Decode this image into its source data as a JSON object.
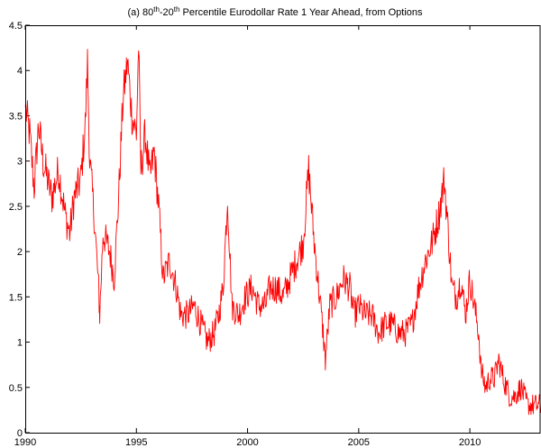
{
  "chart_data": {
    "type": "line",
    "title_parts": {
      "prefix": "(a) 80",
      "sup1": "th",
      "middle": "-20",
      "sup2": "th",
      "suffix": " Percentile Eurodollar Rate 1 Year Ahead, from Options"
    },
    "xlabel": "",
    "ylabel": "",
    "xlim": [
      1990,
      2013.2
    ],
    "ylim": [
      0,
      4.5
    ],
    "xticks": [
      1990,
      1995,
      2000,
      2005,
      2010
    ],
    "xtick_labels": [
      "1990",
      "1995",
      "2000",
      "2005",
      "2010"
    ],
    "yticks": [
      0,
      0.5,
      1,
      1.5,
      2,
      2.5,
      3,
      3.5,
      4,
      4.5
    ],
    "ytick_labels": [
      "0",
      "0.5",
      "1",
      "1.5",
      "2",
      "2.5",
      "3",
      "3.5",
      "4",
      "4.5"
    ],
    "grid": false,
    "series": [
      {
        "color": "#ff0000",
        "x": [
          1990.0,
          1990.2,
          1990.4,
          1990.6,
          1990.8,
          1991.0,
          1991.2,
          1991.5,
          1991.8,
          1992.0,
          1992.2,
          1992.5,
          1992.7,
          1992.8,
          1992.9,
          1993.1,
          1993.3,
          1993.35,
          1993.5,
          1993.8,
          1994.0,
          1994.2,
          1994.4,
          1994.6,
          1994.8,
          1995.0,
          1995.1,
          1995.2,
          1995.4,
          1995.6,
          1995.8,
          1996.0,
          1996.2,
          1996.5,
          1996.8,
          1997.0,
          1997.3,
          1997.6,
          1997.9,
          1998.2,
          1998.5,
          1998.7,
          1998.9,
          1999.1,
          1999.3,
          1999.6,
          1999.9,
          2000.2,
          2000.5,
          2000.8,
          2001.0,
          2001.3,
          2001.6,
          2001.9,
          2002.2,
          2002.5,
          2002.75,
          2003.0,
          2003.2,
          2003.4,
          2003.5,
          2003.7,
          2004.0,
          2004.3,
          2004.6,
          2004.8,
          2005.0,
          2005.3,
          2005.6,
          2005.9,
          2006.2,
          2006.5,
          2006.8,
          2007.1,
          2007.4,
          2007.7,
          2008.0,
          2008.3,
          2008.6,
          2008.85,
          2009.0,
          2009.2,
          2009.4,
          2009.6,
          2009.8,
          2010.0,
          2010.2,
          2010.4,
          2010.5,
          2010.7,
          2010.9,
          2011.1,
          2011.3,
          2011.5,
          2011.8,
          2012.0,
          2012.3,
          2012.6,
          2012.9,
          2013.2
        ],
        "y": [
          3.6,
          3.3,
          2.7,
          3.4,
          3.0,
          2.8,
          2.6,
          2.9,
          2.4,
          2.2,
          2.6,
          2.8,
          3.4,
          4.1,
          3.0,
          2.4,
          1.6,
          1.3,
          2.2,
          2.0,
          1.7,
          2.6,
          3.7,
          4.1,
          3.5,
          3.3,
          4.3,
          2.9,
          3.3,
          2.8,
          3.1,
          2.5,
          1.7,
          1.9,
          1.6,
          1.3,
          1.3,
          1.4,
          1.2,
          1.0,
          1.1,
          1.3,
          1.6,
          2.6,
          1.4,
          1.3,
          1.5,
          1.6,
          1.4,
          1.4,
          1.6,
          1.6,
          1.5,
          1.7,
          1.9,
          2.1,
          2.9,
          2.1,
          1.6,
          1.1,
          0.8,
          1.4,
          1.5,
          1.7,
          1.6,
          1.3,
          1.4,
          1.3,
          1.3,
          1.1,
          1.2,
          1.2,
          1.1,
          1.1,
          1.2,
          1.6,
          1.9,
          2.1,
          2.4,
          2.8,
          2.3,
          1.6,
          1.5,
          1.7,
          1.3,
          1.7,
          1.4,
          1.1,
          0.7,
          0.5,
          0.6,
          0.6,
          0.8,
          0.6,
          0.4,
          0.4,
          0.5,
          0.3,
          0.3,
          0.3
        ]
      }
    ]
  }
}
